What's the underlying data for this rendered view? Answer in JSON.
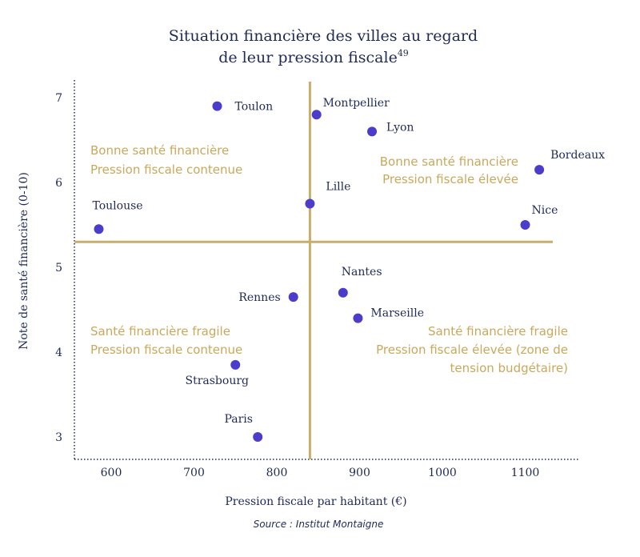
{
  "chart_data": {
    "type": "scatter",
    "title_line1": "Situation financière des villes au regard",
    "title_line2": "de leur pression fiscale",
    "title_sup": "49",
    "xlabel": "Pression fiscale par habitant (€)",
    "ylabel": "Note de santé financière (0-10)",
    "source": "Source : Institut Montaigne",
    "x_ticks": [
      600,
      700,
      800,
      900,
      1000,
      1100
    ],
    "y_ticks": [
      3,
      4,
      5,
      6,
      7
    ],
    "divider_x": 840,
    "divider_y": 5.3,
    "point_color": "#4b3ccc",
    "divider_color": "#c9ae6b",
    "quadrant_color": "#c9a85c",
    "points": [
      {
        "name": "Toulon",
        "x": 728,
        "y": 6.9,
        "anchor": "start",
        "dx": 22,
        "dy": 5
      },
      {
        "name": "Montpellier",
        "x": 848,
        "y": 6.8,
        "anchor": "start",
        "dx": 8,
        "dy": -10
      },
      {
        "name": "Lyon",
        "x": 915,
        "y": 6.6,
        "anchor": "start",
        "dx": 18,
        "dy": -1
      },
      {
        "name": "Bordeaux",
        "x": 1117,
        "y": 6.15,
        "anchor": "start",
        "dx": 14,
        "dy": -14
      },
      {
        "name": "Lille",
        "x": 840,
        "y": 5.75,
        "anchor": "start",
        "dx": 20,
        "dy": -17
      },
      {
        "name": "Toulouse",
        "x": 585,
        "y": 5.45,
        "anchor": "start",
        "dx": -8,
        "dy": -25
      },
      {
        "name": "Nice",
        "x": 1100,
        "y": 5.5,
        "anchor": "start",
        "dx": 8,
        "dy": -14
      },
      {
        "name": "Nantes",
        "x": 880,
        "y": 4.7,
        "anchor": "start",
        "dx": -2,
        "dy": -22
      },
      {
        "name": "Rennes",
        "x": 820,
        "y": 4.65,
        "anchor": "end",
        "dx": -16,
        "dy": 5
      },
      {
        "name": "Marseille",
        "x": 898,
        "y": 4.4,
        "anchor": "start",
        "dx": 16,
        "dy": -2
      },
      {
        "name": "Strasbourg",
        "x": 750,
        "y": 3.85,
        "anchor": "middle",
        "dx": -23,
        "dy": 24
      },
      {
        "name": "Paris",
        "x": 777,
        "y": 3.0,
        "anchor": "middle",
        "dx": -24,
        "dy": -18
      }
    ],
    "quadrants": {
      "top_left": [
        "Bonne santé financière",
        "Pression fiscale contenue"
      ],
      "top_right": [
        "Bonne santé financière",
        "Pression fiscale élevée"
      ],
      "bottom_left": [
        "Santé financière fragile",
        "Pression fiscale contenue"
      ],
      "bottom_right": [
        "Santé financière fragile",
        "Pression fiscale élevée (zone de",
        "tension budgétaire)"
      ]
    }
  }
}
